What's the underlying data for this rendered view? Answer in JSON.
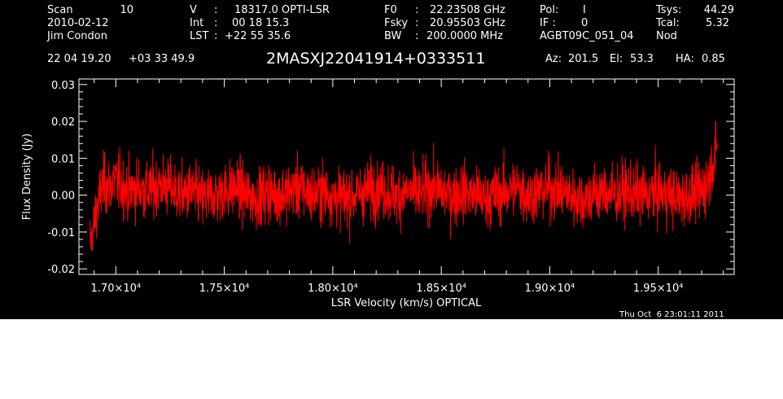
{
  "header": {
    "scan_label": "Scan",
    "scan_value": "10",
    "date": "2010-02-12",
    "observer": "Jim Condon",
    "v_label": "V",
    "v_colon": ":",
    "v_value": "18317.0 OPTI-LSR",
    "int_label": "Int",
    "int_colon": ":",
    "int_value": "00 18 15.3",
    "lst_label": "LST",
    "lst_colon": ":",
    "lst_value": "+22 55 35.6",
    "f0_label": "F0",
    "f0_colon": ":",
    "f0_value": "22.23508 GHz",
    "fsky_label": "Fsky",
    "fsky_colon": ":",
    "fsky_value": "20.95503 GHz",
    "bw_label": "BW",
    "bw_colon": ":",
    "bw_value": "200.0000 MHz",
    "pol_label": "Pol:",
    "pol_value": "I",
    "if_label": "IF :",
    "if_value": "0",
    "project": "AGBT09C_051_04",
    "tsys_label": "Tsys:",
    "tsys_value": "44.29",
    "tcal_label": "Tcal:",
    "tcal_value": "5.32",
    "proc": "Nod",
    "ra": "22 04 19.20",
    "dec": "+03 33 49.9",
    "source": "2MASXJ22041914+0333511",
    "az_label": "Az:",
    "az_value": "201.5",
    "el_label": "El:",
    "el_value": "53.3",
    "ha_label": "HA:",
    "ha_value": "0.85"
  },
  "footer": {
    "timestamp": "Thu Oct  6 23:01:11 2011"
  },
  "colors": {
    "background": "#000000",
    "foreground": "#ffffff",
    "trace": "#ff0000",
    "page": "#ffffff"
  },
  "chart_data": {
    "type": "line",
    "title": "2MASXJ22041914+0333511",
    "xlabel": "LSR Velocity (km/s) OPTICAL",
    "ylabel": "Flux Density (Jy)",
    "xlim": [
      16830,
      19850
    ],
    "ylim": [
      -0.0215,
      0.0315
    ],
    "xticks": [
      17000,
      17500,
      18000,
      18500,
      19000,
      19500
    ],
    "xtick_labels": [
      "1.70×10⁴",
      "1.75×10⁴",
      "1.80×10⁴",
      "1.85×10⁴",
      "1.90×10⁴",
      "1.95×10⁴"
    ],
    "yticks": [
      -0.02,
      -0.01,
      0.0,
      0.01,
      0.02,
      0.03
    ],
    "ytick_labels": [
      "-0.02",
      "-0.01",
      "0.00",
      "0.01",
      "0.02",
      "0.03"
    ],
    "grid": false,
    "series": [
      {
        "x": [
          16880,
          16890,
          16900,
          16910,
          16920,
          16935,
          16950,
          16970,
          16990,
          17020,
          17060,
          17100,
          17150,
          17200,
          17250,
          17300,
          17350,
          17400,
          17450,
          17500,
          17550,
          17600,
          17650,
          17700,
          17750,
          17800,
          17850,
          17900,
          17950,
          18000,
          18050,
          18100,
          18150,
          18200,
          18250,
          18300,
          18350,
          18400,
          18450,
          18500,
          18550,
          18600,
          18650,
          18700,
          18750,
          18800,
          18850,
          18900,
          18950,
          19000,
          19050,
          19100,
          19150,
          19200,
          19250,
          19300,
          19350,
          19400,
          19450,
          19500,
          19550,
          19600,
          19650,
          19700,
          19720,
          19740,
          19755,
          19770
        ],
        "y": [
          -0.012,
          -0.013,
          -0.008,
          -0.004,
          -0.002,
          0.002,
          0.003,
          0.002,
          0.004,
          0.003,
          0.001,
          0.002,
          0.001,
          0.003,
          0.002,
          0.0,
          0.001,
          -0.001,
          0.0,
          0.001,
          0.002,
          0.0,
          -0.001,
          0.001,
          0.0,
          0.001,
          0.002,
          0.0,
          0.001,
          0.0,
          -0.001,
          0.0,
          0.001,
          0.002,
          0.001,
          0.0,
          0.001,
          0.0,
          0.002,
          0.001,
          0.0,
          0.001,
          0.0,
          -0.001,
          0.0,
          0.001,
          0.002,
          0.0,
          0.001,
          0.002,
          0.001,
          0.0,
          -0.001,
          0.0,
          0.001,
          0.0,
          0.001,
          0.0,
          0.0,
          0.001,
          0.0,
          -0.001,
          0.0,
          0.001,
          0.003,
          0.006,
          0.01,
          0.012
        ],
        "noise_rms": 0.004,
        "envelope_range": [
          -0.015,
          0.02
        ]
      }
    ]
  }
}
